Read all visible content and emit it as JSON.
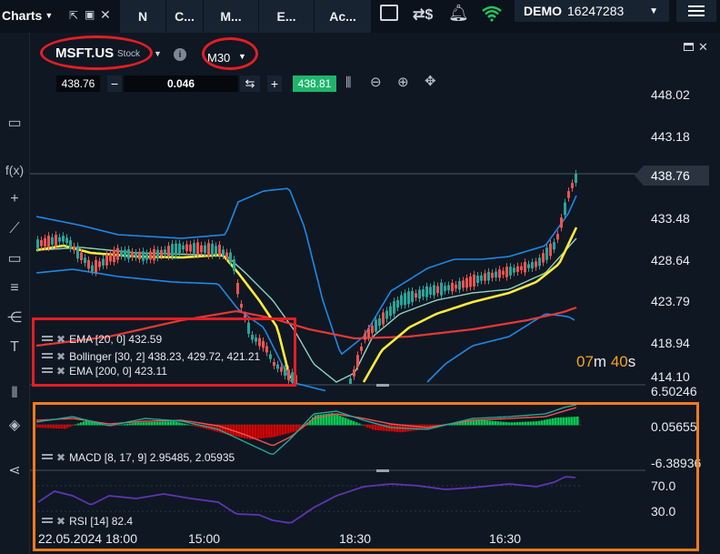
{
  "topbar": {
    "charts_label": "Charts",
    "tabs": [
      "N",
      "C...",
      "M...",
      "E...",
      "Ac..."
    ],
    "account_label": "DEMO",
    "account_number": "16247283"
  },
  "instrument": {
    "symbol": "MSFT.US",
    "type": "Stock",
    "timeframe": "M30"
  },
  "trade_bar": {
    "sell_price": "438.76",
    "volume": "0.046",
    "buy_price": "438.81"
  },
  "price_axis": {
    "ticks": [
      "448.02",
      "443.18",
      "438.76",
      "433.48",
      "428.64",
      "423.79",
      "418.94",
      "414.10"
    ],
    "current_price": "438.76",
    "countdown_min": "07",
    "countdown_min_unit": "m",
    "countdown_sec": "40",
    "countdown_sec_unit": "s"
  },
  "main_indicators": [
    "EMA [20, 0] 432.59",
    "Bollinger [30, 2] 438.23, 429.72, 421.21",
    "EMA [200, 0] 423.11"
  ],
  "macd": {
    "label": "MACD [8, 17, 9] 2.95485, 2.05935",
    "ticks": [
      "6.50246",
      "0.05655",
      "-6.38936"
    ]
  },
  "rsi": {
    "label": "RSI [14] 82.4",
    "ticks": [
      "70.0",
      "30.0"
    ]
  },
  "time_axis": [
    "22.05.2024 18:00",
    "15:00",
    "18:30",
    "16:30"
  ],
  "colors": {
    "bg": "#0f1722",
    "up": "#26a69a",
    "down": "#ef5350",
    "ema20": "#ffeb3b",
    "ema200": "#e53935",
    "bollinger": "#1e88e5",
    "macd_hist_up": "#00c853",
    "macd_hist_down": "#d50000",
    "rsi": "#5e35b1",
    "annotation_red": "#e31e24",
    "annotation_orange": "#f47a20"
  }
}
